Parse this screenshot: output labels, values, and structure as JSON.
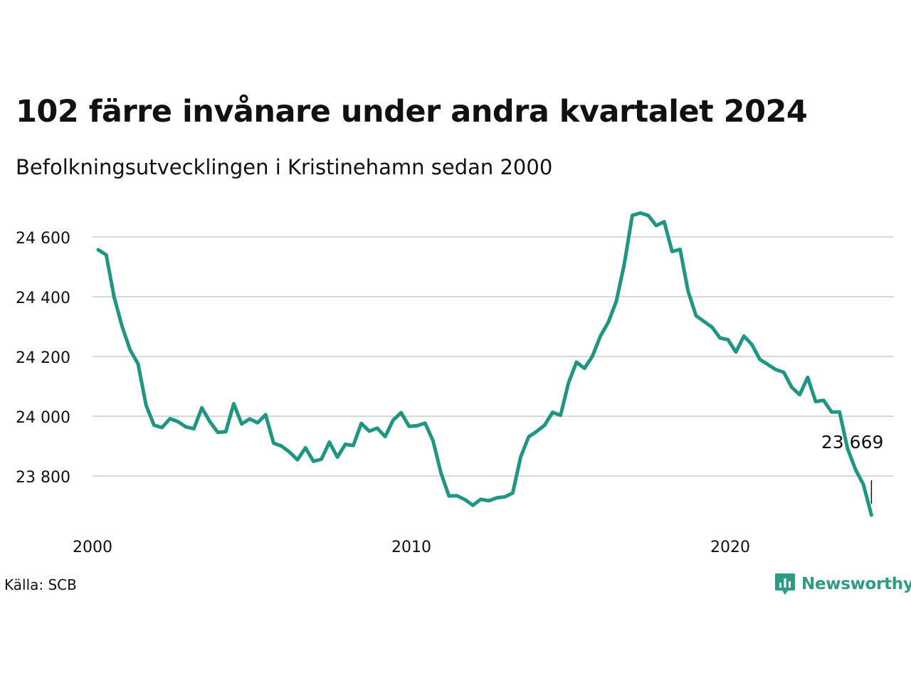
{
  "title": "102 färre invånare under andra kvartalet 2024",
  "subtitle": "Befolkningsutvecklingen i Kristinehamn sedan 2000",
  "source": "Källa: SCB",
  "brand": {
    "name": "Newsworthy",
    "icon": "newsworthy-logo-icon",
    "color": "#2e9b86"
  },
  "chart_data": {
    "type": "line",
    "title": "102 färre invånare under andra kvartalet 2024",
    "subtitle": "Befolkningsutvecklingen i Kristinehamn sedan 2000",
    "xlabel": "",
    "ylabel": "",
    "xlim": [
      2000,
      2025.25
    ],
    "ylim": [
      23640,
      24720
    ],
    "grid": true,
    "line_color": "#1f9683",
    "x_ticks": [
      {
        "value": 2000,
        "label": "2000"
      },
      {
        "value": 2010,
        "label": "2010"
      },
      {
        "value": 2020,
        "label": "2020"
      }
    ],
    "y_ticks": [
      {
        "value": 23800,
        "label": "23 800"
      },
      {
        "value": 24000,
        "label": "24 000"
      },
      {
        "value": 24200,
        "label": "24 200"
      },
      {
        "value": 24400,
        "label": "24 400"
      },
      {
        "value": 24600,
        "label": "24 600"
      }
    ],
    "annotation": {
      "x": 2024.25,
      "y": 23669,
      "label": "23 669"
    },
    "series": [
      {
        "x": [
          2000.0,
          2000.25,
          2000.5,
          2000.75,
          2001.0,
          2001.25,
          2001.5,
          2001.75,
          2002.0,
          2002.25,
          2002.5,
          2002.75,
          2003.0,
          2003.25,
          2003.5,
          2003.75,
          2004.0,
          2004.25,
          2004.5,
          2004.75,
          2005.0,
          2005.25,
          2005.5,
          2005.75,
          2006.0,
          2006.25,
          2006.5,
          2006.75,
          2007.0,
          2007.25,
          2007.5,
          2007.75,
          2008.0,
          2008.25,
          2008.5,
          2008.75,
          2009.0,
          2009.25,
          2009.5,
          2009.75,
          2010.0,
          2010.25,
          2010.5,
          2010.75,
          2011.0,
          2011.25,
          2011.5,
          2011.75,
          2012.0,
          2012.25,
          2012.5,
          2012.75,
          2013.0,
          2013.25,
          2013.5,
          2013.75,
          2014.0,
          2014.25,
          2014.5,
          2014.75,
          2015.0,
          2015.25,
          2015.5,
          2015.75,
          2016.0,
          2016.25,
          2016.5,
          2016.75,
          2017.0,
          2017.25,
          2017.5,
          2017.75,
          2018.0,
          2018.25,
          2018.5,
          2018.75,
          2019.0,
          2019.25,
          2019.5,
          2019.75,
          2020.0,
          2020.25,
          2020.5,
          2020.75,
          2021.0,
          2021.25,
          2021.5,
          2021.75,
          2022.0,
          2022.25,
          2022.5,
          2022.75,
          2023.0,
          2023.25,
          2023.5,
          2023.75,
          2024.0,
          2024.25
        ],
        "y": [
          24557,
          24540,
          24398,
          24300,
          24222,
          24175,
          24037,
          23970,
          23962,
          23992,
          23982,
          23964,
          23958,
          24028,
          23982,
          23946,
          23948,
          24042,
          23974,
          23991,
          23978,
          24005,
          23910,
          23900,
          23880,
          23854,
          23894,
          23849,
          23856,
          23913,
          23863,
          23906,
          23902,
          23976,
          23950,
          23960,
          23932,
          23987,
          24012,
          23966,
          23968,
          23977,
          23918,
          23810,
          23733,
          23734,
          23721,
          23702,
          23722,
          23717,
          23727,
          23730,
          23743,
          23864,
          23931,
          23949,
          23970,
          24013,
          24003,
          24112,
          24181,
          24160,
          24201,
          24268,
          24315,
          24385,
          24510,
          24672,
          24680,
          24672,
          24638,
          24651,
          24551,
          24558,
          24418,
          24336,
          24317,
          24298,
          24262,
          24256,
          24215,
          24268,
          24240,
          24190,
          24173,
          24156,
          24147,
          24097,
          24072,
          24130,
          24049,
          24053,
          24014,
          24014,
          23892,
          23822,
          23771,
          23669
        ]
      }
    ]
  }
}
